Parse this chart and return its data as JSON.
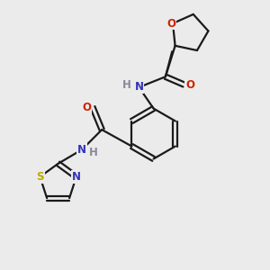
{
  "background_color": "#ebebeb",
  "atom_colors": {
    "C": "#000000",
    "N": "#3333bb",
    "O": "#cc2200",
    "S": "#bbaa00",
    "H": "#888899"
  },
  "bond_color": "#1a1a1a",
  "font_size": 8.5,
  "lw": 1.6
}
